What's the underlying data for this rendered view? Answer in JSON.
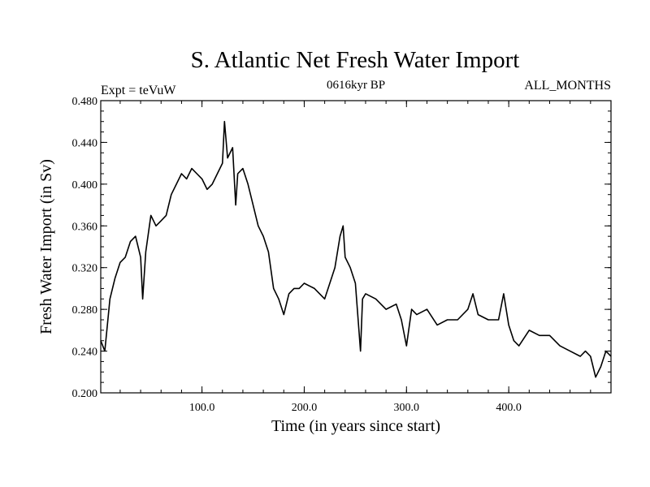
{
  "chart_data": {
    "type": "line",
    "title": "S. Atlantic Net Fresh Water Import",
    "subtitle_left": "Expt = teVuW",
    "subtitle_center": "0616kyr BP",
    "subtitle_right": "ALL_MONTHS",
    "xlabel": "Time (in years since start)",
    "ylabel": "Fresh Water Import (in Sv)",
    "xlim": [
      1,
      500
    ],
    "ylim": [
      0.2,
      0.48
    ],
    "xticks": [
      100,
      200,
      300,
      400
    ],
    "xtick_labels": [
      "100.0",
      "200.0",
      "300.0",
      "400.0"
    ],
    "yticks": [
      0.2,
      0.24,
      0.28,
      0.32,
      0.36,
      0.4,
      0.44,
      0.48
    ],
    "ytick_labels": [
      "0.200",
      "0.240",
      "0.280",
      "0.320",
      "0.360",
      "0.400",
      "0.440",
      "0.480"
    ],
    "grid": false,
    "series": [
      {
        "color": "#000000",
        "x": [
          1,
          5,
          10,
          15,
          20,
          25,
          30,
          35,
          40,
          42,
          45,
          50,
          55,
          60,
          65,
          70,
          75,
          80,
          85,
          90,
          95,
          100,
          105,
          110,
          115,
          120,
          122,
          125,
          130,
          133,
          135,
          140,
          145,
          150,
          155,
          160,
          165,
          170,
          175,
          180,
          185,
          190,
          195,
          200,
          210,
          220,
          230,
          235,
          238,
          240,
          245,
          250,
          255,
          257,
          260,
          270,
          280,
          290,
          295,
          300,
          305,
          310,
          320,
          330,
          340,
          350,
          360,
          365,
          370,
          380,
          390,
          395,
          400,
          405,
          410,
          420,
          430,
          440,
          450,
          460,
          470,
          475,
          480,
          485,
          490,
          495,
          500
        ],
        "y": [
          0.25,
          0.24,
          0.29,
          0.31,
          0.325,
          0.33,
          0.345,
          0.35,
          0.33,
          0.29,
          0.335,
          0.37,
          0.36,
          0.365,
          0.37,
          0.39,
          0.4,
          0.41,
          0.405,
          0.415,
          0.41,
          0.405,
          0.395,
          0.4,
          0.41,
          0.42,
          0.46,
          0.425,
          0.435,
          0.38,
          0.41,
          0.415,
          0.4,
          0.38,
          0.36,
          0.35,
          0.335,
          0.3,
          0.29,
          0.275,
          0.295,
          0.3,
          0.3,
          0.305,
          0.3,
          0.29,
          0.32,
          0.35,
          0.36,
          0.33,
          0.32,
          0.305,
          0.24,
          0.29,
          0.295,
          0.29,
          0.28,
          0.285,
          0.27,
          0.245,
          0.28,
          0.275,
          0.28,
          0.265,
          0.27,
          0.27,
          0.28,
          0.295,
          0.275,
          0.27,
          0.27,
          0.295,
          0.265,
          0.25,
          0.245,
          0.26,
          0.255,
          0.255,
          0.245,
          0.24,
          0.235,
          0.24,
          0.235,
          0.215,
          0.225,
          0.24,
          0.235
        ]
      }
    ]
  }
}
